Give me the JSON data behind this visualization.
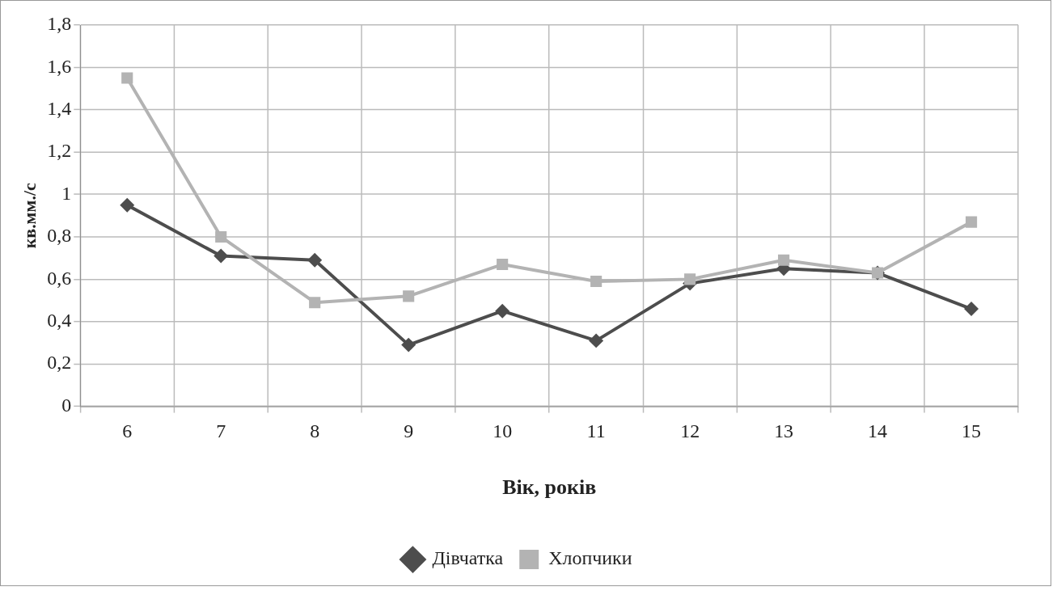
{
  "chart_data": {
    "type": "line",
    "xlabel": "Вік, років",
    "ylabel": "кв.мм./с",
    "categories": [
      "6",
      "7",
      "8",
      "9",
      "10",
      "11",
      "12",
      "13",
      "14",
      "15"
    ],
    "series": [
      {
        "name": "Дівчатка",
        "color": "#4d4d4d",
        "marker": "diamond",
        "values": [
          0.95,
          0.71,
          0.69,
          0.29,
          0.45,
          0.31,
          0.58,
          0.65,
          0.63,
          0.46
        ]
      },
      {
        "name": "Хлопчики",
        "color": "#b3b3b3",
        "marker": "square",
        "values": [
          1.55,
          0.8,
          0.49,
          0.52,
          0.67,
          0.59,
          0.6,
          0.69,
          0.63,
          0.87
        ]
      }
    ],
    "ylim": [
      0,
      1.8
    ],
    "yticks": [
      0,
      {
        "value": 0.2,
        "label": "0,2"
      },
      {
        "value": 0.4,
        "label": "0,4"
      },
      {
        "value": 0.6,
        "label": "0,6"
      },
      {
        "value": 0.8,
        "label": "0,8"
      },
      1,
      {
        "value": 1.2,
        "label": "1,2"
      },
      {
        "value": 1.4,
        "label": "1,4"
      },
      {
        "value": 1.6,
        "label": "1,6"
      },
      {
        "value": 1.8,
        "label": "1,8"
      }
    ],
    "grid": true,
    "legend": "bottom",
    "line_style": "solid"
  }
}
